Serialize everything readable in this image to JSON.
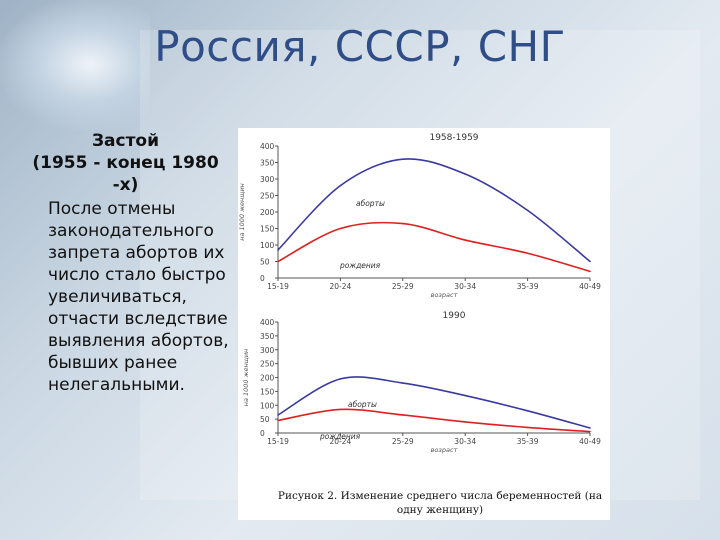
{
  "slide": {
    "title": "Россия, СССР, СНГ",
    "heading": "Застой\n(1955 - конец 1980\n-х)",
    "body": "После отмены законодательного запрета абортов их число стало быстро увеличиваться, отчасти вследствие выявления абортов, бывших ранее нелегальными.",
    "caption": "Рисунок 2. Изменение среднего числа беременностей (на одну женщину)"
  },
  "colors": {
    "abortions": "#3a3aa0",
    "births": "#e02020",
    "title": "#2f4d86"
  },
  "chart_data": [
    {
      "type": "line",
      "title": "1958-1959",
      "xlabel": "возраст",
      "ylabel": "на 1000 женщин",
      "categories": [
        "15-19",
        "20-24",
        "25-29",
        "30-34",
        "35-39",
        "40-49"
      ],
      "ylim": [
        0,
        400
      ],
      "yticks": [
        0,
        50,
        100,
        150,
        200,
        250,
        300,
        350,
        400
      ],
      "series": [
        {
          "name": "аборты",
          "key": "abortions",
          "values": [
            85,
            280,
            360,
            315,
            205,
            50
          ]
        },
        {
          "name": "рождения",
          "key": "births",
          "values": [
            50,
            150,
            165,
            115,
            75,
            20
          ]
        }
      ]
    },
    {
      "type": "line",
      "title": "1990",
      "xlabel": "возраст",
      "ylabel": "на 1000 женщин",
      "categories": [
        "15-19",
        "20-24",
        "25-29",
        "30-34",
        "35-39",
        "40-49"
      ],
      "ylim": [
        0,
        400
      ],
      "yticks": [
        0,
        50,
        100,
        150,
        200,
        250,
        300,
        350,
        400
      ],
      "series": [
        {
          "name": "аборты",
          "key": "abortions",
          "values": [
            65,
            195,
            180,
            135,
            80,
            18
          ]
        },
        {
          "name": "рождения",
          "key": "births",
          "values": [
            45,
            85,
            65,
            40,
            20,
            5
          ]
        }
      ]
    }
  ]
}
